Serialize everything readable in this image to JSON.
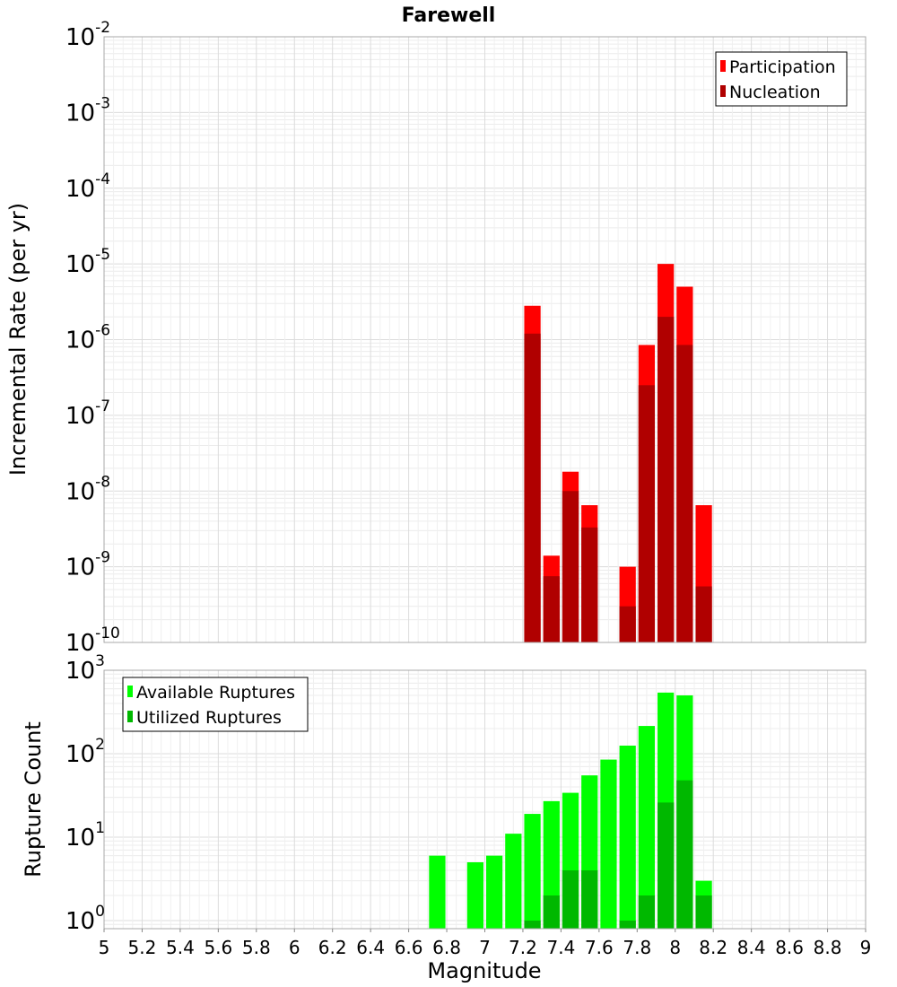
{
  "chart_data": [
    {
      "type": "bar",
      "title": "Farewell",
      "ylabel": "Incremental Rate (per yr)",
      "xlabel": "",
      "y_scale": "log",
      "ylim": [
        1e-10,
        0.01
      ],
      "xlim": [
        5,
        9
      ],
      "grid": true,
      "legend_position": "top-right",
      "y_tick_labels": [
        {
          "base": "10",
          "exp": "-10"
        },
        {
          "base": "10",
          "exp": "-9"
        },
        {
          "base": "10",
          "exp": "-8"
        },
        {
          "base": "10",
          "exp": "-7"
        },
        {
          "base": "10",
          "exp": "-6"
        },
        {
          "base": "10",
          "exp": "-5"
        },
        {
          "base": "10",
          "exp": "-4"
        },
        {
          "base": "10",
          "exp": "-3"
        },
        {
          "base": "10",
          "exp": "-2"
        }
      ],
      "x": [
        7.25,
        7.35,
        7.45,
        7.55,
        7.75,
        7.85,
        7.95,
        8.05,
        8.15
      ],
      "series": [
        {
          "name": "Participation",
          "color": "#ff0000",
          "values": [
            2.8e-06,
            1.4e-09,
            1.8e-08,
            6.5e-09,
            1e-09,
            8.5e-07,
            1e-05,
            5e-06,
            6.5e-09
          ]
        },
        {
          "name": "Nucleation",
          "color": "#b00000",
          "values": [
            1.2e-06,
            7.5e-10,
            1e-08,
            3.3e-09,
            3e-10,
            2.5e-07,
            2e-06,
            8.5e-07,
            5.5e-10
          ]
        }
      ]
    },
    {
      "type": "bar",
      "title": "",
      "ylabel": "Rupture Count",
      "xlabel": "Magnitude",
      "y_scale": "log",
      "ylim": [
        0.8,
        1000
      ],
      "xlim": [
        5,
        9
      ],
      "grid": true,
      "legend_position": "top-left",
      "y_tick_labels": [
        {
          "base": "10",
          "exp": "0"
        },
        {
          "base": "10",
          "exp": "1"
        },
        {
          "base": "10",
          "exp": "2"
        },
        {
          "base": "10",
          "exp": "3"
        }
      ],
      "x_tick_labels": [
        "5",
        "5.2",
        "5.4",
        "5.6",
        "5.8",
        "6",
        "6.2",
        "6.4",
        "6.6",
        "6.8",
        "7",
        "7.2",
        "7.4",
        "7.6",
        "7.8",
        "8",
        "8.2",
        "8.4",
        "8.6",
        "8.8",
        "9"
      ],
      "x": [
        6.75,
        6.95,
        7.05,
        7.15,
        7.25,
        7.35,
        7.45,
        7.55,
        7.65,
        7.75,
        7.85,
        7.95,
        8.05,
        8.15
      ],
      "series": [
        {
          "name": "Available Ruptures",
          "color": "#00ff00",
          "values": [
            6,
            5,
            6,
            11,
            19,
            27,
            34,
            55,
            85,
            125,
            215,
            540,
            500,
            3
          ]
        },
        {
          "name": "Utilized Ruptures",
          "color": "#00b800",
          "values": [
            0,
            0,
            0,
            0,
            1,
            2,
            4,
            4,
            0,
            1,
            2,
            26,
            48,
            2
          ]
        }
      ]
    }
  ]
}
